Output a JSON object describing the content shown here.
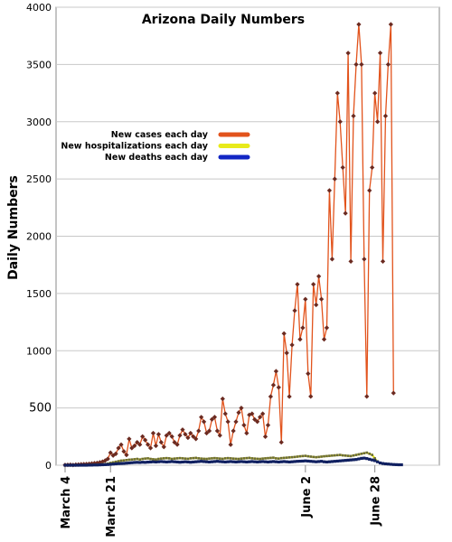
{
  "chart_data": {
    "type": "line",
    "title": "Arizona Daily Numbers",
    "xlabel": "",
    "ylabel": "Daily Numbers",
    "ylim": [
      0,
      4000
    ],
    "yticks": [
      "0",
      "500",
      "1000",
      "1500",
      "2000",
      "2500",
      "3000",
      "3500",
      "4000"
    ],
    "xlim": [
      0,
      130
    ],
    "xticks": [
      {
        "day": 0,
        "label": "March 4"
      },
      {
        "day": 17,
        "label": "March 21"
      },
      {
        "day": 90,
        "label": "June 2"
      },
      {
        "day": 116,
        "label": "June 28"
      }
    ],
    "grid": true,
    "legend_position": "upper-left",
    "series": [
      {
        "name": "New cases each day",
        "color": "#e2531c",
        "values": [
          2,
          3,
          4,
          2,
          5,
          6,
          8,
          9,
          10,
          12,
          15,
          18,
          20,
          25,
          30,
          40,
          55,
          110,
          85,
          100,
          150,
          180,
          120,
          90,
          230,
          150,
          170,
          200,
          180,
          250,
          220,
          180,
          150,
          280,
          170,
          270,
          200,
          160,
          260,
          280,
          250,
          200,
          180,
          260,
          310,
          270,
          240,
          280,
          250,
          230,
          300,
          420,
          380,
          280,
          300,
          400,
          420,
          300,
          260,
          580,
          450,
          380,
          180,
          300,
          380,
          460,
          500,
          350,
          280,
          440,
          450,
          400,
          380,
          420,
          450,
          250,
          350,
          600,
          700,
          820,
          680,
          200,
          1150,
          980,
          600,
          1050,
          1350,
          1580,
          1100,
          1200,
          1450,
          800,
          600,
          1580,
          1400,
          1650,
          1450,
          1100,
          1200,
          2400,
          1800,
          2500,
          3250,
          3000,
          2600,
          2200,
          3600,
          1780,
          3050,
          3500,
          3850,
          3500,
          1800,
          600,
          2400,
          2600,
          3250,
          3000,
          3600,
          1780,
          3050,
          3500,
          3850,
          630
        ],
        "markers": true
      },
      {
        "name": "New hospitalizations each day",
        "color": "#e8ea1a",
        "values": [
          0,
          0,
          0,
          0,
          0,
          0,
          1,
          1,
          2,
          3,
          3,
          4,
          5,
          6,
          8,
          10,
          14,
          20,
          25,
          30,
          35,
          40,
          42,
          45,
          48,
          50,
          52,
          55,
          50,
          55,
          58,
          60,
          55,
          52,
          50,
          55,
          58,
          60,
          62,
          60,
          55,
          58,
          60,
          62,
          60,
          58,
          56,
          60,
          62,
          64,
          60,
          58,
          56,
          55,
          58,
          60,
          62,
          60,
          58,
          56,
          60,
          62,
          60,
          58,
          56,
          55,
          58,
          60,
          62,
          64,
          60,
          58,
          56,
          55,
          58,
          60,
          62,
          64,
          66,
          60,
          58,
          62,
          64,
          66,
          68,
          70,
          72,
          75,
          78,
          80,
          82,
          78,
          75,
          72,
          70,
          72,
          75,
          78,
          80,
          82,
          84,
          86,
          88,
          90,
          86,
          84,
          82,
          80,
          85,
          90,
          95,
          100,
          105,
          110,
          100,
          90,
          60,
          30,
          20,
          15,
          12,
          10,
          8,
          6,
          5,
          4,
          4
        ],
        "markers": true
      },
      {
        "name": "New deaths each day",
        "color": "#1226c4",
        "values": [
          0,
          0,
          0,
          0,
          0,
          0,
          0,
          0,
          0,
          1,
          1,
          2,
          2,
          3,
          4,
          5,
          6,
          8,
          10,
          12,
          14,
          15,
          16,
          18,
          20,
          22,
          24,
          25,
          24,
          26,
          25,
          27,
          28,
          30,
          28,
          30,
          32,
          30,
          28,
          30,
          32,
          30,
          28,
          26,
          28,
          30,
          28,
          26,
          28,
          30,
          32,
          34,
          32,
          30,
          28,
          30,
          32,
          34,
          32,
          30,
          28,
          30,
          32,
          30,
          28,
          30,
          32,
          30,
          28,
          30,
          32,
          30,
          28,
          30,
          32,
          30,
          28,
          30,
          32,
          30,
          28,
          30,
          32,
          30,
          28,
          30,
          32,
          34,
          35,
          36,
          38,
          36,
          34,
          32,
          30,
          32,
          34,
          30,
          28,
          30,
          32,
          34,
          36,
          38,
          40,
          42,
          44,
          46,
          48,
          50,
          55,
          60,
          62,
          58,
          52,
          46,
          40,
          30,
          20,
          15,
          12,
          10,
          8,
          6,
          5,
          4,
          4
        ],
        "markers": true
      }
    ]
  }
}
